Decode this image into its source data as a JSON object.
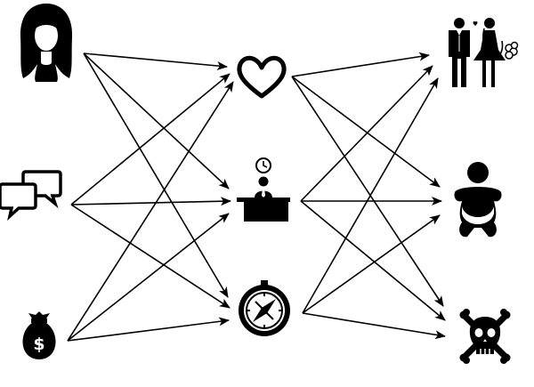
{
  "diagram": {
    "stroke": "#000000",
    "background": "#ffffff",
    "nodes": [
      {
        "id": "woman",
        "icon": "woman-silhouette-icon",
        "column": 1
      },
      {
        "id": "speech",
        "icon": "speech-bubbles-icon",
        "column": 1
      },
      {
        "id": "money",
        "icon": "money-bag-icon",
        "column": 1,
        "symbol": "$"
      },
      {
        "id": "heart",
        "icon": "heart-outline-icon",
        "column": 2
      },
      {
        "id": "office",
        "icon": "office-desk-clock-icon",
        "column": 2
      },
      {
        "id": "compass",
        "icon": "compass-icon",
        "column": 2
      },
      {
        "id": "wedding",
        "icon": "wedding-couple-icon",
        "column": 3
      },
      {
        "id": "baby",
        "icon": "baby-icon",
        "column": 3
      },
      {
        "id": "death",
        "icon": "skull-crossbones-icon",
        "column": 3
      }
    ],
    "edges": [
      [
        "woman",
        "heart"
      ],
      [
        "woman",
        "office"
      ],
      [
        "woman",
        "compass"
      ],
      [
        "speech",
        "heart"
      ],
      [
        "speech",
        "office"
      ],
      [
        "speech",
        "compass"
      ],
      [
        "money",
        "heart"
      ],
      [
        "money",
        "office"
      ],
      [
        "money",
        "compass"
      ],
      [
        "heart",
        "wedding"
      ],
      [
        "heart",
        "baby"
      ],
      [
        "heart",
        "death"
      ],
      [
        "office",
        "wedding"
      ],
      [
        "office",
        "baby"
      ],
      [
        "office",
        "death"
      ],
      [
        "compass",
        "wedding"
      ],
      [
        "compass",
        "baby"
      ],
      [
        "compass",
        "death"
      ]
    ]
  }
}
